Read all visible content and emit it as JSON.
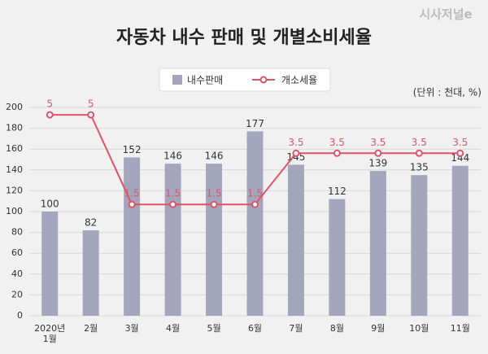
{
  "brand": "시사저널e",
  "chart_data": {
    "type": "bar",
    "title": "자동차 내수 판매 및 개별소비세율",
    "unit_note": "(단위 : 천대, %)",
    "categories": [
      "2020년\n1월",
      "2월",
      "3월",
      "4월",
      "5월",
      "6월",
      "7월",
      "8월",
      "9월",
      "10월",
      "11월"
    ],
    "series": [
      {
        "name": "내수판매",
        "type": "bar",
        "color": "#a3a6bd",
        "values": [
          100,
          82,
          152,
          146,
          146,
          177,
          145,
          112,
          139,
          135,
          144
        ]
      },
      {
        "name": "개소세율",
        "type": "line",
        "axis": "y2",
        "color": "#e05366",
        "values": [
          5,
          5,
          1.5,
          1.5,
          1.5,
          1.5,
          3.5,
          3.5,
          3.5,
          3.5,
          3.5
        ]
      }
    ],
    "ylim": [
      0,
      200
    ],
    "yticks": [
      0,
      20,
      40,
      60,
      80,
      100,
      120,
      140,
      160,
      180,
      200
    ],
    "y2lim": [
      -2.85,
      5.29
    ],
    "grid": true,
    "legend": "top"
  }
}
